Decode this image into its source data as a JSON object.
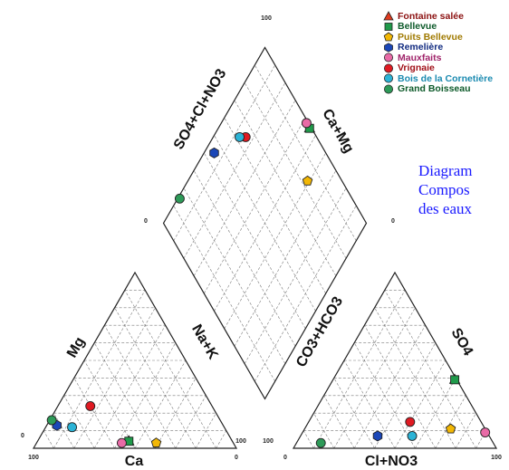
{
  "chart_data": {
    "type": "scatter",
    "subtype": "piper-trilinear-diagram",
    "cation_triangle": {
      "axis_labels": {
        "left": "Mg",
        "right": "Na+K",
        "bottom": "Ca"
      },
      "corner_labels": {
        "bottom_left": "100",
        "bottom_right": "0",
        "right_base": "100",
        "left_base": "0"
      }
    },
    "anion_triangle": {
      "axis_labels": {
        "left": "CO3+HCO3",
        "right": "SO4",
        "bottom": "Cl+NO3"
      },
      "corner_labels": {
        "bottom_left": "0",
        "bottom_right": "100",
        "left_base": "100"
      }
    },
    "diamond": {
      "axis_labels": {
        "left": "SO4+Cl+NO3",
        "right": "Ca+Mg"
      },
      "corner_labels": {
        "top": "100",
        "left": "0",
        "right": "0"
      }
    },
    "tick_values": [
      "0",
      "100"
    ],
    "grid": true,
    "legend_position": "top-right",
    "series": [
      {
        "name": "Fontaine salée",
        "color": "#e03a1e",
        "marker": "triangle",
        "ca": 51,
        "mg": 4,
        "na_k": 45,
        "hco3": 1,
        "so4": 39,
        "cl_no3": 60
      },
      {
        "name": "Bellevue",
        "color": "#1f9a4a",
        "marker": "square",
        "ca": 51,
        "mg": 4,
        "na_k": 45,
        "hco3": 1,
        "so4": 39,
        "cl_no3": 60
      },
      {
        "name": "Puits Bellevue",
        "color": "#f2b705",
        "marker": "pentagon",
        "ca": 38,
        "mg": 3,
        "na_k": 59,
        "hco3": 17,
        "so4": 11,
        "cl_no3": 72
      },
      {
        "name": "Remelière",
        "color": "#1b47b8",
        "marker": "hexagon",
        "ca": 82,
        "mg": 13,
        "na_k": 5,
        "hco3": 55,
        "so4": 7,
        "cl_no3": 38
      },
      {
        "name": "Mauxfaits",
        "color": "#e86aa6",
        "marker": "circle",
        "ca": 55,
        "mg": 3,
        "na_k": 42,
        "hco3": 1,
        "so4": 9,
        "cl_no3": 90
      },
      {
        "name": "Vrignaie",
        "color": "#e01a22",
        "marker": "circle",
        "ca": 60,
        "mg": 24,
        "na_k": 16,
        "hco3": 35,
        "so4": 15,
        "cl_no3": 50
      },
      {
        "name": "Bois de la Cornetière",
        "color": "#2bb3d6",
        "marker": "circle",
        "ca": 75,
        "mg": 12,
        "na_k": 13,
        "hco3": 38,
        "so4": 7,
        "cl_no3": 55
      },
      {
        "name": "Grand Boisseau",
        "color": "#2d9a58",
        "marker": "circle",
        "ca": 83,
        "mg": 16,
        "na_k": 1,
        "hco3": 85,
        "so4": 3,
        "cl_no3": 12
      }
    ]
  },
  "caption": {
    "line1": "Diagram",
    "line2": "Compos",
    "line3": "des eaux"
  }
}
